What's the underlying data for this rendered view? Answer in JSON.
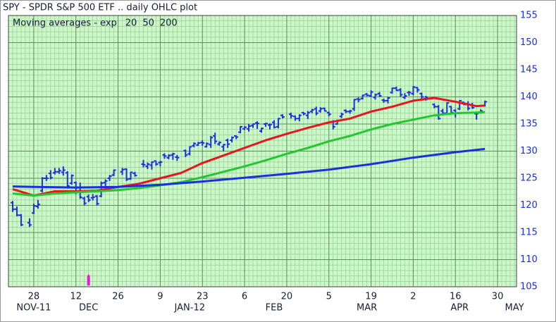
{
  "chart_data": {
    "type": "ohlc",
    "title": "SPY - SPDR S&P 500 ETF .. daily OHLC plot",
    "subtitle": "Moving averages - exp",
    "color": "#1a2fe0",
    "grid": true,
    "ylim": [
      105,
      155
    ],
    "yticks": [
      105,
      110,
      115,
      120,
      125,
      130,
      135,
      140,
      145,
      150,
      155
    ],
    "xlim": [
      -6,
      114.5
    ],
    "xticks": [
      {
        "value": 0,
        "label": "28"
      },
      {
        "value": 10,
        "label": "12"
      },
      {
        "value": 20,
        "label": "26"
      },
      {
        "value": 30,
        "label": "9"
      },
      {
        "value": 40,
        "label": "23"
      },
      {
        "value": 50,
        "label": "6"
      },
      {
        "value": 60,
        "label": "20"
      },
      {
        "value": 70,
        "label": "5"
      },
      {
        "value": 80,
        "label": "19"
      },
      {
        "value": 90,
        "label": "2"
      },
      {
        "value": 100,
        "label": "16"
      },
      {
        "value": 110,
        "label": "30"
      }
    ],
    "month_labels": [
      {
        "value": 0,
        "label": "NOV-11"
      },
      {
        "value": 13,
        "label": "DEC"
      },
      {
        "value": 37,
        "label": "JAN-12"
      },
      {
        "value": 57,
        "label": "FEB"
      },
      {
        "value": 79,
        "label": "MAR"
      },
      {
        "value": 101,
        "label": "APR"
      },
      {
        "value": 114,
        "label": "MAY"
      }
    ],
    "markers": [
      13
    ],
    "x": [
      -5,
      -4,
      -3,
      -1,
      0,
      1,
      2,
      3,
      4,
      5,
      6,
      7,
      8,
      9,
      10,
      11,
      12,
      13,
      14,
      15,
      16,
      17,
      18,
      19,
      21,
      22,
      23,
      24,
      26,
      27,
      28,
      29,
      30,
      31,
      32,
      33,
      34,
      36,
      37,
      38,
      39,
      40,
      41,
      42,
      43,
      44,
      45,
      46,
      47,
      48,
      49,
      50,
      51,
      52,
      53,
      54,
      55,
      56,
      57,
      58,
      59,
      61,
      62,
      63,
      64,
      65,
      66,
      67,
      68,
      69,
      70,
      71,
      72,
      73,
      74,
      75,
      76,
      77,
      78,
      79,
      80,
      81,
      82,
      83,
      84,
      85,
      86,
      87,
      88,
      89,
      90,
      91,
      92,
      93,
      95,
      96,
      97,
      98,
      99,
      100,
      101,
      102,
      103,
      104,
      105,
      106,
      107
    ],
    "open": [
      120.5,
      119.3,
      118.2,
      116.8,
      118.6,
      119.8,
      122.7,
      125.0,
      125.9,
      126.0,
      126.2,
      126.1,
      126.0,
      124.1,
      124.2,
      122.7,
      121.3,
      121.6,
      121.4,
      121.7,
      121.7,
      124.2,
      125.0,
      125.6,
      126.2,
      126.7,
      124.9,
      125.9,
      127.6,
      127.2,
      127.4,
      128.2,
      127.9,
      129.3,
      128.8,
      129.3,
      128.9,
      130.1,
      129.5,
      131.0,
      131.1,
      131.6,
      130.8,
      131.2,
      132.8,
      131.3,
      130.8,
      132.0,
      132.0,
      132.8,
      133.5,
      134.1,
      134.1,
      134.7,
      135.2,
      133.7,
      135.0,
      134.8,
      135.3,
      134.5,
      136.6,
      136.8,
      136.4,
      136.0,
      137.1,
      136.6,
      137.3,
      137.8,
      137.4,
      137.9,
      137.1,
      135.4,
      135.0,
      136.4,
      137.5,
      137.3,
      137.8,
      139.6,
      139.7,
      140.5,
      140.2,
      139.9,
      140.6,
      139.4,
      139.3,
      140.8,
      141.6,
      141.3,
      139.9,
      140.8,
      140.6,
      141.7,
      140.6,
      139.7,
      138.6,
      138.2,
      137.4,
      137.0,
      138.2,
      137.5,
      137.8,
      139.0,
      138.7,
      138.5,
      136.9,
      137.2,
      138.4
    ],
    "high": [
      120.8,
      119.8,
      118.4,
      117.6,
      120.3,
      121.0,
      125.2,
      125.6,
      126.5,
      126.9,
      126.9,
      127.2,
      126.3,
      125.7,
      124.4,
      124.2,
      121.6,
      122.0,
      122.1,
      121.9,
      124.4,
      124.8,
      125.6,
      126.6,
      126.9,
      126.8,
      126.2,
      126.2,
      128.4,
      127.9,
      128.1,
      128.2,
      128.2,
      129.6,
      129.4,
      129.7,
      129.3,
      130.3,
      130.9,
      131.6,
      131.7,
      132.0,
      131.6,
      132.8,
      133.4,
      131.8,
      131.3,
      132.3,
      132.7,
      132.9,
      134.6,
      134.6,
      135.0,
      135.1,
      135.5,
      134.3,
      135.2,
      135.1,
      135.7,
      136.1,
      136.8,
      137.1,
      136.6,
      136.8,
      137.2,
      137.4,
      137.8,
      138.2,
      138.1,
      138.0,
      137.3,
      135.7,
      135.8,
      137.1,
      137.7,
      137.6,
      139.6,
      139.9,
      140.4,
      140.7,
      141.2,
      140.6,
      140.9,
      139.7,
      140.0,
      141.7,
      141.9,
      141.6,
      140.7,
      141.1,
      142.0,
      141.8,
      140.8,
      140.2,
      138.8,
      138.5,
      137.8,
      139.0,
      138.3,
      137.7,
      139.4,
      139.1,
      139.2,
      138.9,
      137.3,
      137.7,
      139.3
    ],
    "low": [
      118.8,
      118.0,
      116.2,
      116.0,
      118.4,
      119.4,
      122.4,
      124.5,
      124.8,
      125.7,
      125.8,
      125.5,
      123.4,
      123.8,
      122.1,
      121.2,
      120.0,
      120.6,
      120.9,
      120.0,
      121.5,
      123.3,
      124.5,
      125.4,
      125.6,
      124.5,
      124.7,
      125.3,
      127.0,
      126.7,
      126.6,
      127.3,
      127.2,
      128.6,
      128.5,
      128.4,
      128.2,
      128.9,
      129.2,
      130.7,
      131.0,
      131.0,
      130.7,
      130.6,
      131.3,
      131.0,
      130.0,
      130.6,
      131.6,
      132.2,
      133.3,
      133.9,
      133.6,
      134.3,
      134.1,
      133.4,
      134.5,
      134.0,
      134.2,
      134.2,
      136.0,
      136.0,
      135.6,
      135.5,
      136.6,
      135.9,
      137.0,
      136.6,
      137.1,
      137.3,
      136.4,
      134.0,
      134.9,
      136.1,
      137.0,
      136.9,
      137.4,
      139.0,
      139.5,
      140.1,
      140.0,
      139.5,
      140.0,
      138.9,
      138.8,
      140.6,
      141.1,
      140.0,
      139.6,
      140.2,
      140.3,
      140.8,
      139.5,
      139.3,
      137.9,
      135.8,
      136.8,
      136.7,
      136.8,
      136.2,
      137.6,
      138.5,
      137.5,
      137.8,
      135.8,
      136.9,
      138.2
    ],
    "close": [
      119.3,
      118.2,
      116.4,
      116.4,
      119.9,
      120.2,
      125.0,
      125.0,
      125.1,
      126.2,
      126.4,
      126.5,
      123.6,
      125.5,
      122.5,
      121.5,
      120.4,
      121.0,
      121.5,
      120.3,
      124.1,
      124.5,
      125.4,
      126.5,
      126.6,
      124.8,
      126.1,
      125.5,
      127.5,
      127.6,
      128.0,
      127.6,
      128.0,
      129.1,
      129.2,
      129.5,
      128.8,
      129.3,
      130.8,
      131.4,
      131.5,
      131.5,
      131.4,
      132.5,
      131.8,
      131.6,
      131.2,
      131.3,
      132.5,
      132.6,
      134.5,
      134.4,
      134.6,
      135.0,
      135.1,
      134.2,
      135.1,
      134.9,
      134.4,
      136.0,
      136.3,
      136.5,
      136.0,
      136.6,
      136.9,
      137.1,
      137.6,
      137.0,
      137.8,
      137.4,
      136.8,
      134.5,
      135.6,
      136.8,
      137.3,
      137.4,
      139.5,
      139.5,
      140.3,
      140.3,
      140.9,
      140.4,
      140.2,
      139.3,
      139.8,
      141.6,
      141.2,
      140.4,
      140.2,
      140.8,
      141.8,
      141.3,
      140.0,
      139.9,
      138.2,
      136.0,
      137.0,
      138.9,
      137.1,
      137.0,
      139.3,
      138.6,
      137.9,
      138.0,
      136.9,
      137.4,
      139.1
    ],
    "series": [
      {
        "name": "20",
        "color": "#e8141e",
        "x": [
          -5,
          0,
          5,
          10,
          15,
          20,
          25,
          30,
          35,
          40,
          45,
          50,
          55,
          60,
          65,
          70,
          75,
          80,
          85,
          90,
          95,
          100,
          105,
          107
        ],
        "values": [
          123.0,
          121.8,
          122.6,
          122.6,
          122.7,
          123.4,
          124.0,
          125.0,
          126.0,
          127.8,
          129.2,
          130.6,
          132.0,
          133.2,
          134.3,
          135.3,
          136.0,
          137.3,
          138.2,
          139.3,
          139.8,
          139.1,
          138.3,
          138.4
        ]
      },
      {
        "name": "50",
        "color": "#22c830",
        "x": [
          -5,
          0,
          5,
          10,
          15,
          20,
          25,
          30,
          35,
          40,
          45,
          50,
          55,
          60,
          65,
          70,
          75,
          80,
          85,
          90,
          95,
          100,
          105,
          107
        ],
        "values": [
          122.2,
          121.8,
          122.2,
          122.4,
          122.6,
          122.8,
          123.2,
          123.7,
          124.3,
          125.2,
          126.2,
          127.2,
          128.3,
          129.5,
          130.6,
          131.8,
          132.8,
          134.0,
          135.0,
          135.8,
          136.6,
          137.0,
          137.1,
          137.2
        ]
      },
      {
        "name": "200",
        "color": "#1a2fe0",
        "x": [
          -5,
          0,
          10,
          20,
          30,
          40,
          50,
          60,
          70,
          80,
          90,
          100,
          107
        ],
        "values": [
          123.5,
          123.4,
          123.3,
          123.4,
          123.8,
          124.4,
          125.1,
          125.8,
          126.6,
          127.6,
          128.8,
          129.8,
          130.4
        ]
      }
    ]
  }
}
